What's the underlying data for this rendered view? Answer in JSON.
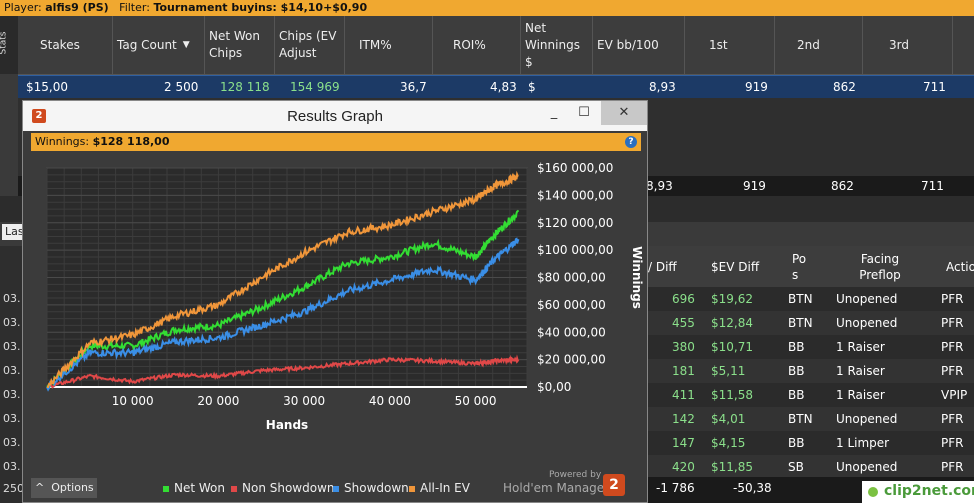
{
  "topbar": {
    "player_label": "Player:",
    "player": "alfis9 (PS)",
    "filter_label": "Filter:",
    "filter": "Tournament buyins: $14,10+$0,90"
  },
  "stats_tab": "Stats",
  "columns": [
    "Stakes",
    "Tag Count",
    "Net Won Chips",
    "Chips (EV Adjust",
    "ITM%",
    "ROI%",
    "Net Winnings $",
    "EV bb/100",
    "1st",
    "2nd",
    "3rd"
  ],
  "row": {
    "stakes": "$15,00",
    "tag_count": "2 500",
    "net_won": "128 118",
    "chips_ev": "154 969",
    "itm": "36,7",
    "roi": "4,83",
    "net_winnings": "$",
    "ev_bb": "8,93",
    "first": "919",
    "second": "862",
    "third": "711"
  },
  "totals": {
    "ev_bb": "8,93",
    "first": "919",
    "second": "862",
    "third": "711"
  },
  "las_label": "Las",
  "hands_header": {
    "ev_diff": "/ Diff",
    "sev_diff": "$EV Diff",
    "pos": "Po s",
    "facing": "Facing Preflop",
    "action": "Actio"
  },
  "hands": [
    {
      "left": "03.",
      "ev": "696",
      "sev": "$19,62",
      "pos": "BTN",
      "facing": "Unopened",
      "act": "PFR"
    },
    {
      "left": "03.",
      "ev": "455",
      "sev": "$12,84",
      "pos": "BTN",
      "facing": "Unopened",
      "act": "PFR"
    },
    {
      "left": "03.",
      "ev": "380",
      "sev": "$10,71",
      "pos": "BB",
      "facing": "1 Raiser",
      "act": "PFR"
    },
    {
      "left": "03.",
      "ev": "181",
      "sev": "$5,11",
      "pos": "BB",
      "facing": "1 Raiser",
      "act": "PFR"
    },
    {
      "left": "03.",
      "ev": "411",
      "sev": "$11,58",
      "pos": "BB",
      "facing": "1 Raiser",
      "act": "VPIP"
    },
    {
      "left": "03.",
      "ev": "142",
      "sev": "$4,01",
      "pos": "BTN",
      "facing": "Unopened",
      "act": "PFR"
    },
    {
      "left": "03.",
      "ev": "147",
      "sev": "$4,15",
      "pos": "BB",
      "facing": "1 Limper",
      "act": "PFR"
    },
    {
      "left": "03.",
      "ev": "420",
      "sev": "$11,85",
      "pos": "SB",
      "facing": "Unopened",
      "act": "PFR"
    }
  ],
  "bottom_totals": {
    "left": "250",
    "a": "-1 786",
    "b": "-50,38"
  },
  "window": {
    "title": "Results Graph",
    "min": "_",
    "max": "☐",
    "close": "✕",
    "bar_label": "Winnings:",
    "bar_value": "$128 118,00",
    "help": "?",
    "options": "Options",
    "powered": "Powered by",
    "brand": "Hold'em Manager",
    "brand_logo": "2"
  },
  "chart_data": {
    "type": "line",
    "xlabel": "Hands",
    "ylabel": "Winnings",
    "xticks": [
      "10 000",
      "20 000",
      "30 000",
      "40 000",
      "50 000"
    ],
    "yticks": [
      "$0,00",
      "$20 000,00",
      "$40 000,00",
      "$60 000,00",
      "$80 000,00",
      "$100 000,00",
      "$120 000,00",
      "$140 000,00",
      "$160 000,00"
    ],
    "xlim": [
      0,
      56000
    ],
    "ylim": [
      0,
      160000
    ],
    "x": [
      0,
      5000,
      10000,
      15000,
      20000,
      25000,
      30000,
      35000,
      40000,
      45000,
      50000,
      52000,
      55000
    ],
    "series": [
      {
        "name": "Net Won",
        "color": "#33dd33",
        "values": [
          0,
          30000,
          30000,
          42000,
          45000,
          58000,
          73000,
          90000,
          95000,
          105000,
          95000,
          110000,
          128000
        ]
      },
      {
        "name": "Non Showdown",
        "color": "#e04848",
        "values": [
          0,
          8000,
          4000,
          9000,
          8000,
          12000,
          14000,
          17000,
          20000,
          19000,
          17000,
          19000,
          20000
        ]
      },
      {
        "name": "Showdown",
        "color": "#3a8ee6",
        "values": [
          0,
          25000,
          25000,
          33000,
          36000,
          45000,
          55000,
          70000,
          78000,
          86000,
          78000,
          92000,
          108000
        ]
      },
      {
        "name": "All-In EV",
        "color": "#f0963a",
        "values": [
          0,
          32000,
          38000,
          52000,
          60000,
          80000,
          98000,
          113000,
          118000,
          128000,
          137000,
          146000,
          154000
        ]
      }
    ]
  }
}
